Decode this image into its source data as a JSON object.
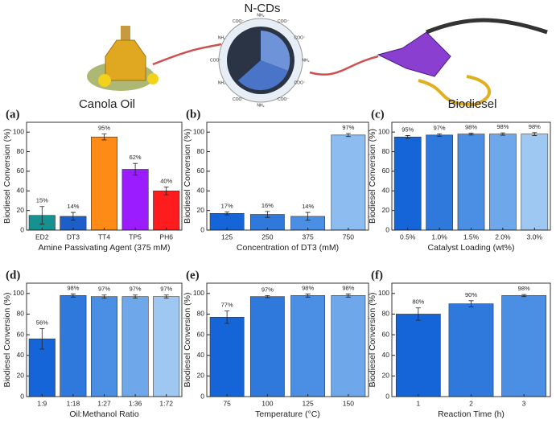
{
  "illustration": {
    "labels": [
      "Canola Oil",
      "N-CDs",
      "Biodiesel"
    ],
    "particle_labels": [
      "NH₂",
      "COO⁻",
      "COO⁻",
      "NH₂",
      "COO⁻",
      "NH₂",
      "COO⁻",
      "NH₂",
      "COO⁻",
      "NH₂",
      "COO⁻",
      "COO⁻"
    ]
  },
  "chart_data": [
    {
      "type": "bar",
      "panel": "(a)",
      "xlabel": "Amine Passivating Agent (375 mM)",
      "ylabel": "Biodiesel Conversion (%)",
      "categories": [
        "ED2",
        "DT3",
        "TT4",
        "TP5",
        "PH6"
      ],
      "values": [
        15,
        14,
        95,
        62,
        40
      ],
      "errors": [
        9,
        4,
        3,
        6,
        4
      ],
      "value_labels": [
        "15%",
        "14%",
        "95%",
        "62%",
        "40%"
      ],
      "colors": [
        "#17918f",
        "#1d5fc9",
        "#ff8b17",
        "#9a1cff",
        "#ff1c1c"
      ],
      "ylim": [
        0,
        110
      ],
      "yticks": [
        0,
        20,
        40,
        60,
        80,
        100
      ]
    },
    {
      "type": "bar",
      "panel": "(b)",
      "xlabel": "Concentration of DT3 (mM)",
      "ylabel": "Biodiesel Conversion (%)",
      "categories": [
        "125",
        "250",
        "375",
        "750"
      ],
      "values": [
        17,
        16,
        14,
        97
      ],
      "errors": [
        1.5,
        3,
        4,
        1.5
      ],
      "value_labels": [
        "17%",
        "16%",
        "14%",
        "97%"
      ],
      "colors": [
        "#1565d8",
        "#2f79dd",
        "#4b8fe4",
        "#8dbdf0"
      ],
      "ylim": [
        0,
        110
      ],
      "yticks": [
        0,
        20,
        40,
        60,
        80,
        100
      ]
    },
    {
      "type": "bar",
      "panel": "(c)",
      "xlabel": "Catalyst Loading (wt%)",
      "ylabel": "Biodiesel Conversion (%)",
      "categories": [
        "0.5%",
        "1.0%",
        "1.5%",
        "2.0%",
        "3.0%"
      ],
      "values": [
        95,
        97,
        98,
        98,
        98
      ],
      "errors": [
        1.5,
        1.2,
        1,
        1.2,
        1.5
      ],
      "value_labels": [
        "95%",
        "97%",
        "98%",
        "98%",
        "98%"
      ],
      "colors": [
        "#1565d8",
        "#2f79dd",
        "#4b8fe4",
        "#6ea7ea",
        "#9ec8f2"
      ],
      "ylim": [
        0,
        110
      ],
      "yticks": [
        0,
        20,
        40,
        60,
        80,
        100
      ]
    },
    {
      "type": "bar",
      "panel": "(d)",
      "xlabel": "Oil:Methanol Ratio",
      "ylabel": "Biodiesel Conversion (%)",
      "categories": [
        "1:9",
        "1:18",
        "1:27",
        "1:36",
        "1:72"
      ],
      "values": [
        56,
        98,
        97,
        97,
        97
      ],
      "errors": [
        10,
        1.5,
        1.5,
        1.5,
        1.5
      ],
      "value_labels": [
        "56%",
        "98%",
        "97%",
        "97%",
        "97%"
      ],
      "colors": [
        "#1565d8",
        "#2f79dd",
        "#4b8fe4",
        "#6ea7ea",
        "#9ec8f2"
      ],
      "ylim": [
        0,
        110
      ],
      "yticks": [
        0,
        20,
        40,
        60,
        80,
        100
      ]
    },
    {
      "type": "bar",
      "panel": "(e)",
      "xlabel": "Temperature (°C)",
      "ylabel": "Biodiesel Conversion (%)",
      "categories": [
        "75",
        "100",
        "125",
        "150"
      ],
      "values": [
        77,
        97,
        98,
        98
      ],
      "errors": [
        6,
        1,
        1.5,
        1.5
      ],
      "value_labels": [
        "77%",
        "97%",
        "98%",
        "98%"
      ],
      "colors": [
        "#1565d8",
        "#2f79dd",
        "#4b8fe4",
        "#6ea7ea"
      ],
      "ylim": [
        0,
        110
      ],
      "yticks": [
        0,
        20,
        40,
        60,
        80,
        100
      ]
    },
    {
      "type": "bar",
      "panel": "(f)",
      "xlabel": "Reaction Time (h)",
      "ylabel": "Biodiesel Conversion (%)",
      "categories": [
        "1",
        "2",
        "3"
      ],
      "values": [
        80,
        90,
        98
      ],
      "errors": [
        6,
        3,
        1
      ],
      "value_labels": [
        "80%",
        "90%",
        "98%"
      ],
      "colors": [
        "#1565d8",
        "#2f79dd",
        "#4b8fe4"
      ],
      "ylim": [
        0,
        110
      ],
      "yticks": [
        0,
        20,
        40,
        60,
        80,
        100
      ]
    }
  ]
}
